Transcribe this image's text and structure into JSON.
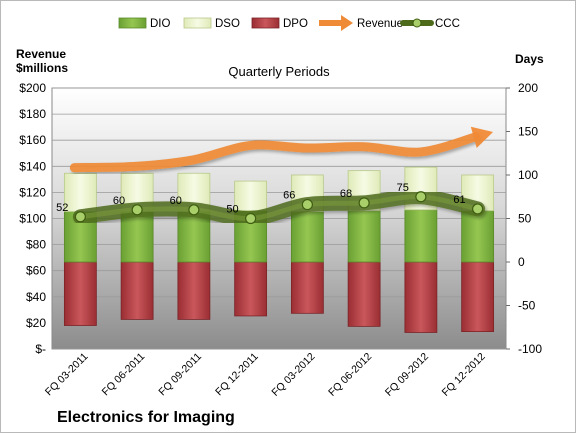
{
  "chart_data": {
    "type": "bar",
    "title": "Quarterly Periods",
    "company": "Electronics for Imaging",
    "left_axis_label": "Revenue\n$millions",
    "right_axis_label": "Days",
    "categories": [
      "FQ 03-2011",
      "FQ 06-2011",
      "FQ 09-2011",
      "FQ 12-2011",
      "FQ 03-2012",
      "FQ 06-2012",
      "FQ 09-2012",
      "FQ 12-2012"
    ],
    "left_ticks": [
      "$200",
      "$180",
      "$160",
      "$140",
      "$120",
      "$100",
      "$80",
      "$60",
      "$40",
      "$20",
      "$-"
    ],
    "right_ticks": [
      "200",
      "150",
      "100",
      "50",
      "0",
      "-50",
      "-100"
    ],
    "ylim_left": [
      0,
      200
    ],
    "ylim_right": [
      -100,
      200
    ],
    "legend_position": "top",
    "series": [
      {
        "name": "DIO",
        "axis": "days",
        "color": "#7fb23e",
        "values": [
          58,
          58,
          58,
          59,
          58,
          59,
          60,
          59
        ]
      },
      {
        "name": "DSO",
        "axis": "days",
        "color": "#e8f2c9",
        "values": [
          44,
          44,
          44,
          34,
          42,
          46,
          49,
          41
        ]
      },
      {
        "name": "DPO",
        "axis": "days",
        "color": "#b23a3e",
        "values": [
          -73,
          -66,
          -66,
          -62,
          -59,
          -74,
          -81,
          -80
        ]
      },
      {
        "name": "Revenue",
        "axis": "$millions",
        "color": "#f39640",
        "values": [
          139,
          140,
          145,
          156,
          154,
          155,
          151,
          163
        ]
      },
      {
        "name": "CCC",
        "axis": "days",
        "color": "#5c7f1e",
        "values": [
          52,
          60,
          60,
          50,
          66,
          68,
          75,
          61
        ]
      }
    ],
    "ccc_labels": [
      "52",
      "60",
      "60",
      "50",
      "66",
      "68",
      "75",
      "61"
    ]
  }
}
